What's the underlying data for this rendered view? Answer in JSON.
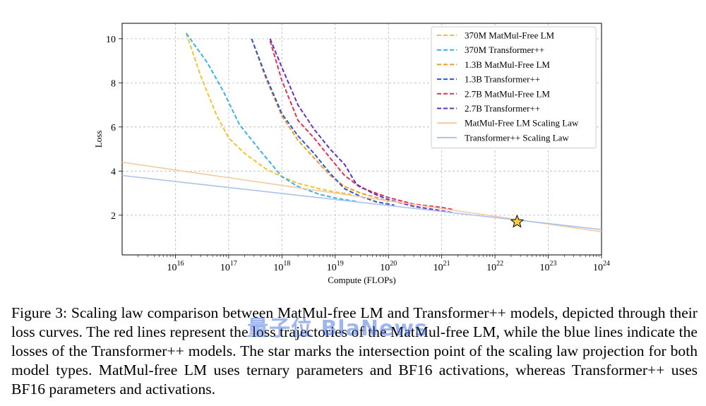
{
  "chart_data": {
    "type": "line",
    "title": "",
    "xlabel": "Compute (FLOPs)",
    "ylabel": "Loss",
    "x_scale": "log",
    "xlim": [
      1000000000000000.0,
      1e+24
    ],
    "ylim": [
      0.2,
      10.7
    ],
    "x_ticks": [
      1e+16,
      1e+17,
      1e+18,
      1e+19,
      1e+20,
      1e+21,
      1e+22,
      1e+23,
      1e+24
    ],
    "y_ticks": [
      2,
      4,
      6,
      8,
      10
    ],
    "grid": true,
    "legend_position": "top-right",
    "series": [
      {
        "name": "370M MatMul-Free LM",
        "style": "dashed",
        "color": "#f2c230",
        "points": [
          [
            1.6e+16,
            10.25
          ],
          [
            3e+16,
            8.3
          ],
          [
            6e+16,
            6.5
          ],
          [
            1e+17,
            5.5
          ],
          [
            2e+17,
            4.8
          ],
          [
            5e+17,
            4.1
          ],
          [
            1e+18,
            3.75
          ],
          [
            2e+18,
            3.45
          ],
          [
            5e+18,
            3.2
          ],
          [
            1e+19,
            3.05
          ],
          [
            2e+19,
            2.95
          ]
        ]
      },
      {
        "name": "370M Transformer++",
        "style": "dashed",
        "color": "#3cb1e5",
        "points": [
          [
            1.6e+16,
            10.25
          ],
          [
            4e+16,
            8.9
          ],
          [
            8e+16,
            7.6
          ],
          [
            1.6e+17,
            6.1
          ],
          [
            4e+17,
            4.9
          ],
          [
            1e+18,
            3.75
          ],
          [
            2e+18,
            3.3
          ],
          [
            5e+18,
            2.95
          ],
          [
            1e+19,
            2.78
          ],
          [
            2.5e+19,
            2.62
          ]
        ]
      },
      {
        "name": "1.3B MatMul-Free LM",
        "style": "dashed",
        "color": "#ee9a2e",
        "points": [
          [
            2.7e+17,
            10.0
          ],
          [
            5e+17,
            8.2
          ],
          [
            1e+18,
            6.5
          ],
          [
            2e+18,
            5.4
          ],
          [
            4e+18,
            4.6
          ],
          [
            8e+18,
            3.8
          ],
          [
            1.5e+19,
            3.3
          ],
          [
            3e+19,
            3.0
          ],
          [
            6e+19,
            2.8
          ],
          [
            1e+20,
            2.62
          ]
        ]
      },
      {
        "name": "1.3B Transformer++",
        "style": "dashed",
        "color": "#2f55d4",
        "points": [
          [
            2.7e+17,
            10.0
          ],
          [
            5e+17,
            8.3
          ],
          [
            1e+18,
            6.6
          ],
          [
            2e+18,
            5.6
          ],
          [
            4e+18,
            4.8
          ],
          [
            8e+18,
            3.9
          ],
          [
            1.5e+19,
            3.2
          ],
          [
            3e+19,
            2.85
          ],
          [
            6e+19,
            2.6
          ],
          [
            1.3e+20,
            2.45
          ]
        ]
      },
      {
        "name": "2.7B MatMul-Free LM",
        "style": "dashed",
        "color": "#e0314f",
        "points": [
          [
            6e+17,
            9.9
          ],
          [
            1e+18,
            8.1
          ],
          [
            2e+18,
            6.3
          ],
          [
            4e+18,
            5.5
          ],
          [
            8e+18,
            4.6
          ],
          [
            1.5e+19,
            3.8
          ],
          [
            3e+19,
            3.25
          ],
          [
            1e+20,
            2.8
          ],
          [
            3e+20,
            2.5
          ],
          [
            1e+21,
            2.35
          ],
          [
            1.7e+21,
            2.25
          ]
        ]
      },
      {
        "name": "2.7B Transformer++",
        "style": "dashed",
        "color": "#6230c9",
        "points": [
          [
            6e+17,
            10.0
          ],
          [
            1e+18,
            8.7
          ],
          [
            2e+18,
            7.0
          ],
          [
            4e+18,
            5.9
          ],
          [
            8e+18,
            5.0
          ],
          [
            1.5e+19,
            4.3
          ],
          [
            2.5e+19,
            3.4
          ],
          [
            5e+19,
            3.0
          ],
          [
            1e+20,
            2.7
          ],
          [
            3e+20,
            2.4
          ],
          [
            1e+21,
            2.2
          ],
          [
            1.7e+21,
            2.1
          ]
        ]
      },
      {
        "name": "MatMul-Free LM Scaling Law",
        "style": "solid",
        "color": "#f6c9a2",
        "points": [
          [
            1000000000000000.0,
            4.4
          ],
          [
            1e+24,
            1.25
          ]
        ]
      },
      {
        "name": "Transformer++ Scaling Law",
        "style": "solid",
        "color": "#a9c3ec",
        "points": [
          [
            1000000000000000.0,
            3.8
          ],
          [
            1e+24,
            1.35
          ]
        ]
      }
    ],
    "intersection_marker": {
      "shape": "star",
      "x": 2.6e+22,
      "y": 1.7,
      "color": "#f6cd3c"
    }
  },
  "caption": "Figure 3: Scaling law comparison between MatMul-free LM and Transformer++ models, depicted through their loss curves. The red lines represent the loss trajectories of the MatMul-free LM, while the blue lines indicate the losses of the Transformer++ models. The star marks the intersection point of the scaling law projection for both model types. MatMul-free LM uses ternary parameters and BF16 activations, whereas Transformer++ uses BF16 parameters and activations.",
  "watermark": "量子位 BlaNews"
}
